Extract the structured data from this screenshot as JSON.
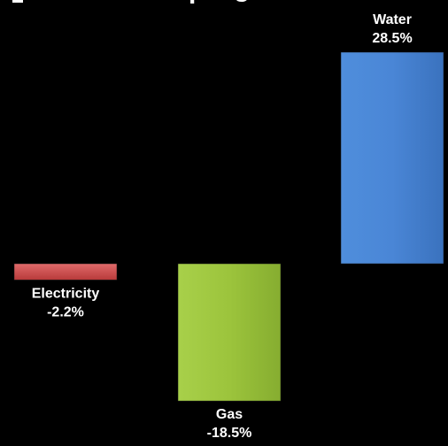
{
  "chart_data": {
    "type": "bar",
    "title": "",
    "title_partial_visible": "... p ... g",
    "categories": [
      "Electricity",
      "Gas",
      "Water"
    ],
    "values": [
      -2.2,
      -18.5,
      28.5
    ],
    "value_labels": [
      "-2.2%",
      "-18.5%",
      "28.5%"
    ],
    "unit": "%",
    "colors": [
      "#cf4848",
      "#9cc43c",
      "#4a86d6"
    ],
    "background": "#000000",
    "axes_visible": false,
    "grid": false,
    "legend": "none"
  }
}
